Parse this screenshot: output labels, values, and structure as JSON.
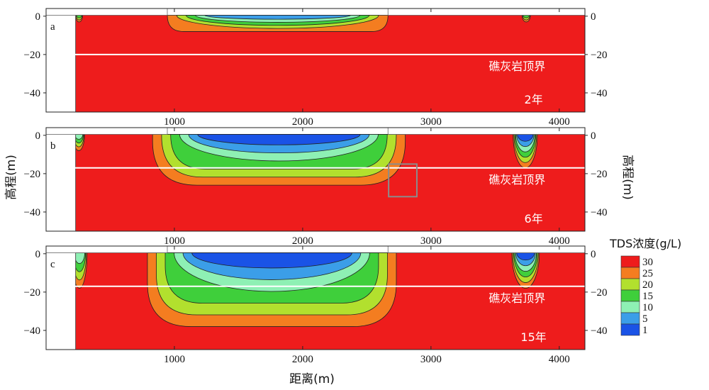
{
  "chart_data": {
    "type": "heatmap",
    "xlabel": "距离(m)",
    "ylabel_left": "高程(m)",
    "ylabel_right": "高程(m)",
    "xlim": [
      0,
      4200
    ],
    "ylim": [
      -50,
      4
    ],
    "x_ticks": [
      1000,
      2000,
      3000,
      4000
    ],
    "y_ticks_left": [
      0,
      -20,
      -40
    ],
    "y_ticks_right": [
      0,
      -20,
      -40
    ],
    "colors": {
      "30": "#ee1c1c",
      "25": "#f47d20",
      "20": "#b2e02e",
      "15": "#3fcf3b",
      "10": "#8ef0b4",
      "5": "#3b9ee8",
      "1": "#1a53e6",
      "land": "#ffffff",
      "dike": "#d8d8d8"
    },
    "legend": {
      "title": "TDS浓度(g/L)",
      "levels": [
        "30",
        "25",
        "20",
        "15",
        "10",
        "5",
        "1"
      ]
    },
    "limestone_top_label": "礁灰岩顶界",
    "panels": [
      {
        "letter": "a",
        "time_label": "2年",
        "limestone_top": -20,
        "fresh_zones": [
          {
            "x1": 230,
            "x2": 285,
            "bottom": -3,
            "levels": [
              25,
              20,
              15
            ]
          },
          {
            "x1": 945,
            "x2": 2665,
            "bottom": -8,
            "levels": [
              25,
              20,
              15,
              10,
              5
            ]
          },
          {
            "x1": 3710,
            "x2": 3775,
            "bottom": -3,
            "levels": [
              25,
              20,
              15
            ]
          }
        ]
      },
      {
        "letter": "b",
        "time_label": "6年",
        "limestone_top": -17,
        "fresh_zones": [
          {
            "x1": 210,
            "x2": 300,
            "bottom": -8,
            "levels": [
              25,
              20,
              15,
              10
            ]
          },
          {
            "x1": 830,
            "x2": 2800,
            "bottom": -26,
            "levels": [
              25,
              20,
              15,
              10,
              5,
              1
            ]
          },
          {
            "x1": 3640,
            "x2": 3830,
            "bottom": -17,
            "levels": [
              25,
              20,
              15,
              10,
              5,
              1
            ]
          }
        ]
      },
      {
        "letter": "c",
        "time_label": "15年",
        "limestone_top": -17,
        "fresh_zones": [
          {
            "x1": 200,
            "x2": 320,
            "bottom": -18,
            "levels": [
              25,
              20,
              15,
              10
            ]
          },
          {
            "x1": 790,
            "x2": 2730,
            "bottom": -38,
            "levels": [
              25,
              20,
              15,
              10,
              5,
              1
            ]
          },
          {
            "x1": 3630,
            "x2": 3845,
            "bottom": -18,
            "levels": [
              25,
              20,
              15,
              10,
              5,
              1
            ]
          }
        ]
      }
    ]
  }
}
